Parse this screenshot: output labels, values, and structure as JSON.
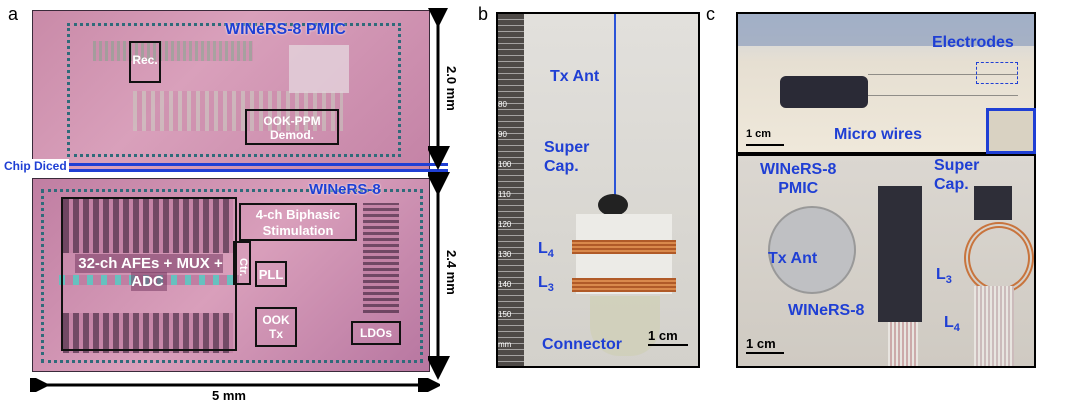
{
  "panels": {
    "a": "a",
    "b": "b",
    "c": "c"
  },
  "panel_a": {
    "top_chip_title": "WINeRS-8 PMIC",
    "rec_label": "Rec.",
    "ook_label": "OOK-PPM Demod.",
    "chip_diced": "Chip Diced",
    "bottom_chip_title": "WINeRS-8",
    "afe_label": "32-ch AFEs + MUX + ADC",
    "stim_label": "4-ch Biphasic Stimulation",
    "ctr_label": "Ctr.",
    "pll_label": "PLL",
    "ook_tx_label": "OOK Tx",
    "ldos_label": "LDOs",
    "dim_top": "2.0 mm",
    "dim_bottom": "2.4 mm",
    "dim_width": "5 mm"
  },
  "panel_b": {
    "tx_ant": "Tx Ant",
    "super_cap": "Super Cap.",
    "l4": "L",
    "l4_sub": "4",
    "l3": "L",
    "l3_sub": "3",
    "connector": "Connector",
    "scale": "1 cm",
    "ruler_marks": [
      "80",
      "90",
      "100",
      "110",
      "120",
      "130",
      "140",
      "150",
      "mm"
    ]
  },
  "panel_c": {
    "electrodes": "Electrodes",
    "micro_wires": "Micro wires",
    "scale_top": "1 cm",
    "winers_pmic_1": "WINeRS-8",
    "winers_pmic_2": "PMIC",
    "super_cap": "Super Cap.",
    "tx_ant": "Tx Ant",
    "l3": "L",
    "l3_sub": "3",
    "l4": "L",
    "l4_sub": "4",
    "winers_8": "WINeRS-8",
    "scale_bottom": "1 cm"
  },
  "colors": {
    "accent_blue": "#1f3fd4",
    "chip_pink": "#d39bb8"
  }
}
